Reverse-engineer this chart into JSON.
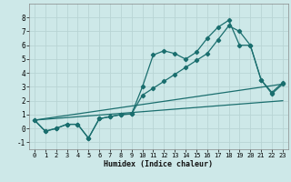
{
  "xlabel": "Humidex (Indice chaleur)",
  "bg_color": "#cde8e8",
  "grid_color": "#b8d4d4",
  "line_color": "#1a6e6e",
  "xlim": [
    -0.5,
    23.5
  ],
  "ylim": [
    -1.5,
    9.0
  ],
  "yticks": [
    -1,
    0,
    1,
    2,
    3,
    4,
    5,
    6,
    7,
    8
  ],
  "xticks": [
    0,
    1,
    2,
    3,
    4,
    5,
    6,
    7,
    8,
    9,
    10,
    11,
    12,
    13,
    14,
    15,
    16,
    17,
    18,
    19,
    20,
    21,
    22,
    23
  ],
  "line1_x": [
    0,
    1,
    2,
    3,
    4,
    5,
    6,
    7,
    8,
    9,
    10,
    11,
    12,
    13,
    14,
    15,
    16,
    17,
    18,
    19,
    20,
    21,
    22,
    23
  ],
  "line1_y": [
    0.6,
    -0.2,
    0.0,
    0.3,
    0.3,
    -0.7,
    0.7,
    0.85,
    1.0,
    1.05,
    3.0,
    5.3,
    5.6,
    5.4,
    5.0,
    5.5,
    6.5,
    7.3,
    7.8,
    6.0,
    6.0,
    3.5,
    2.5,
    3.2
  ],
  "line2_x": [
    0,
    1,
    2,
    3,
    4,
    5,
    6,
    7,
    8,
    9,
    10,
    11,
    12,
    13,
    14,
    15,
    16,
    17,
    18,
    19,
    20,
    21,
    22,
    23
  ],
  "line2_y": [
    0.6,
    -0.2,
    0.0,
    0.3,
    0.3,
    -0.7,
    0.7,
    0.85,
    1.0,
    1.05,
    2.4,
    2.9,
    3.4,
    3.9,
    4.4,
    4.9,
    5.4,
    6.4,
    7.4,
    7.0,
    6.0,
    3.5,
    2.6,
    3.3
  ],
  "line3_x": [
    0,
    23
  ],
  "line3_y": [
    0.6,
    3.2
  ],
  "line4_x": [
    0,
    23
  ],
  "line4_y": [
    0.6,
    2.0
  ]
}
